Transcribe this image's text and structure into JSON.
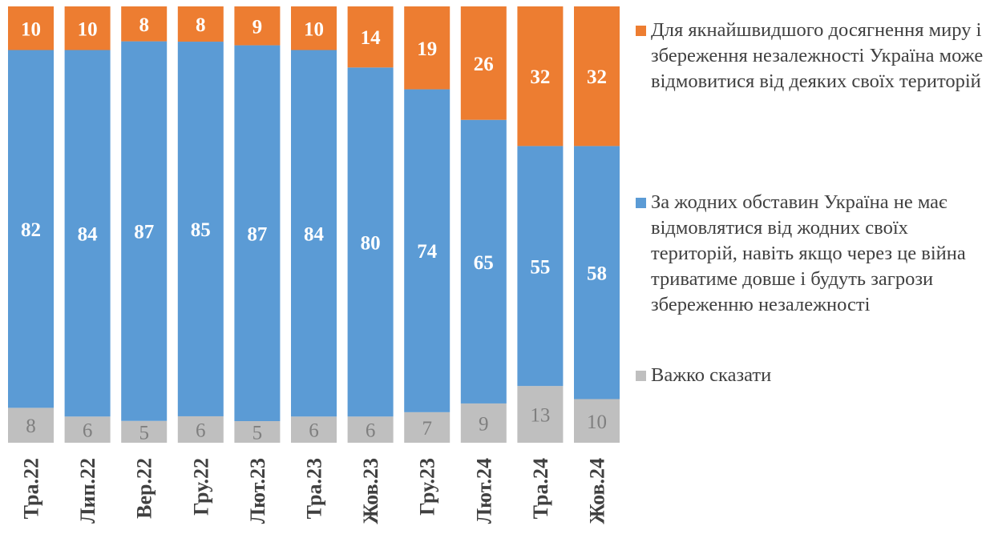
{
  "chart_data": {
    "type": "bar",
    "stacked": true,
    "normalized_percent": true,
    "categories": [
      "Тра.22",
      "Лип.22",
      "Вер.22",
      "Гру.22",
      "Лют.23",
      "Тра.23",
      "Жов.23",
      "Гру.23",
      "Лют.24",
      "Тра.24",
      "Жов.24"
    ],
    "series": [
      {
        "name": "Важко сказати",
        "color": "#BFBFBF",
        "values": [
          8,
          6,
          5,
          6,
          5,
          6,
          6,
          7,
          9,
          13,
          10
        ]
      },
      {
        "name": "За жодних обставин Україна не має відмовлятися від жодних своїх територій, навіть якщо через це війна триватиме довше і будуть загрози збереженню незалежності",
        "color": "#5B9BD5",
        "values": [
          82,
          84,
          87,
          85,
          87,
          84,
          80,
          74,
          65,
          55,
          58
        ]
      },
      {
        "name": "Для якнайшвидшого досягнення миру і збереження незалежності Україна може відмовитися від деяких своїх територій",
        "color": "#ED7D31",
        "values": [
          10,
          10,
          8,
          8,
          9,
          10,
          14,
          19,
          26,
          32,
          32
        ]
      }
    ],
    "data_labels": true,
    "legend_placement": "right",
    "legend_order": [
      2,
      1,
      0
    ],
    "grid": false,
    "title": "",
    "xlabel": "",
    "ylabel": ""
  }
}
